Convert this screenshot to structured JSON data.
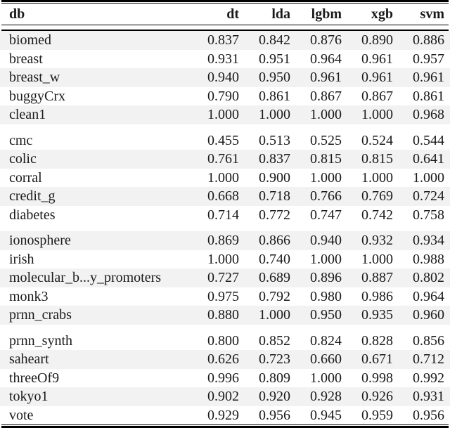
{
  "table": {
    "columns": [
      "db",
      "dt",
      "lda",
      "lgbm",
      "xgb",
      "svm"
    ],
    "rows": [
      {
        "db": "biomed",
        "values": [
          "0.837",
          "0.842",
          "0.876",
          "0.890",
          "0.886"
        ]
      },
      {
        "db": "breast",
        "values": [
          "0.931",
          "0.951",
          "0.964",
          "0.961",
          "0.957"
        ]
      },
      {
        "db": "breast_w",
        "values": [
          "0.940",
          "0.950",
          "0.961",
          "0.961",
          "0.961"
        ]
      },
      {
        "db": "buggyCrx",
        "values": [
          "0.790",
          "0.861",
          "0.867",
          "0.867",
          "0.861"
        ]
      },
      {
        "db": "clean1",
        "values": [
          "1.000",
          "1.000",
          "1.000",
          "1.000",
          "0.968"
        ]
      },
      {
        "db": "cmc",
        "values": [
          "0.455",
          "0.513",
          "0.525",
          "0.524",
          "0.544"
        ]
      },
      {
        "db": "colic",
        "values": [
          "0.761",
          "0.837",
          "0.815",
          "0.815",
          "0.641"
        ]
      },
      {
        "db": "corral",
        "values": [
          "1.000",
          "0.900",
          "1.000",
          "1.000",
          "1.000"
        ]
      },
      {
        "db": "credit_g",
        "values": [
          "0.668",
          "0.718",
          "0.766",
          "0.769",
          "0.724"
        ]
      },
      {
        "db": "diabetes",
        "values": [
          "0.714",
          "0.772",
          "0.747",
          "0.742",
          "0.758"
        ]
      },
      {
        "db": "ionosphere",
        "values": [
          "0.869",
          "0.866",
          "0.940",
          "0.932",
          "0.934"
        ]
      },
      {
        "db": "irish",
        "values": [
          "1.000",
          "0.740",
          "1.000",
          "1.000",
          "0.988"
        ]
      },
      {
        "db": "molecular_b...y_promoters",
        "values": [
          "0.727",
          "0.689",
          "0.896",
          "0.887",
          "0.802"
        ]
      },
      {
        "db": "monk3",
        "values": [
          "0.975",
          "0.792",
          "0.980",
          "0.986",
          "0.964"
        ]
      },
      {
        "db": "prnn_crabs",
        "values": [
          "0.880",
          "1.000",
          "0.950",
          "0.935",
          "0.960"
        ]
      },
      {
        "db": "prnn_synth",
        "values": [
          "0.800",
          "0.852",
          "0.824",
          "0.828",
          "0.856"
        ]
      },
      {
        "db": "saheart",
        "values": [
          "0.626",
          "0.723",
          "0.660",
          "0.671",
          "0.712"
        ]
      },
      {
        "db": "threeOf9",
        "values": [
          "0.996",
          "0.809",
          "1.000",
          "0.998",
          "0.992"
        ]
      },
      {
        "db": "tokyo1",
        "values": [
          "0.902",
          "0.920",
          "0.928",
          "0.926",
          "0.931"
        ]
      },
      {
        "db": "vote",
        "values": [
          "0.929",
          "0.956",
          "0.945",
          "0.959",
          "0.956"
        ]
      }
    ],
    "group_size": 5,
    "stripe_color": "#f2f2f2",
    "rule_color": "#000000",
    "text_color": "#1a1a1a"
  }
}
